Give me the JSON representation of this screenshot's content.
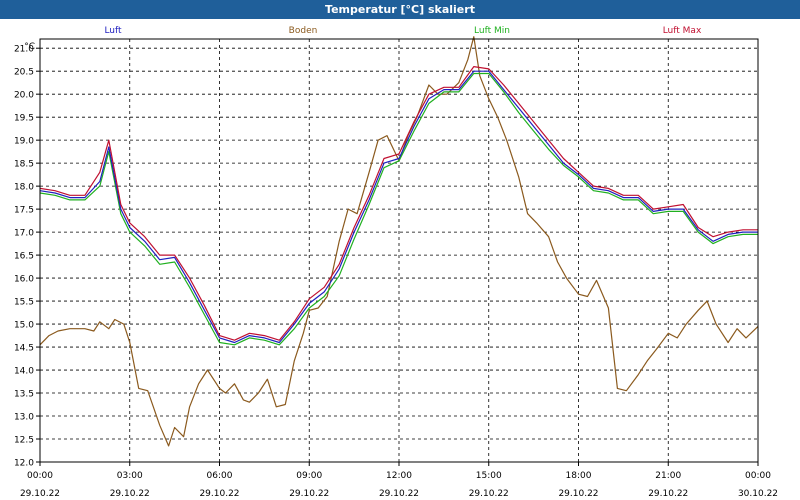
{
  "window": {
    "title": "Temperatur [°C] skaliert"
  },
  "chart_data": {
    "type": "line",
    "title": "Temperatur [°C] skaliert",
    "ylabel": "°C",
    "ylim": [
      12.0,
      21.2
    ],
    "xlim": [
      0,
      24
    ],
    "grid": true,
    "legend_placement": "top",
    "y_ticks": [
      "12.0",
      "12.5",
      "13.0",
      "13.5",
      "14.0",
      "14.5",
      "15.0",
      "15.5",
      "16.0",
      "16.5",
      "17.0",
      "17.5",
      "18.0",
      "18.5",
      "19.0",
      "19.5",
      "20.0",
      "20.5",
      "21.0"
    ],
    "x_ticks": [
      {
        "time": "00:00",
        "date": "29.10.22",
        "x": 0
      },
      {
        "time": "03:00",
        "date": "29.10.22",
        "x": 3
      },
      {
        "time": "06:00",
        "date": "29.10.22",
        "x": 6
      },
      {
        "time": "09:00",
        "date": "29.10.22",
        "x": 9
      },
      {
        "time": "12:00",
        "date": "29.10.22",
        "x": 12
      },
      {
        "time": "15:00",
        "date": "29.10.22",
        "x": 15
      },
      {
        "time": "18:00",
        "date": "29.10.22",
        "x": 18
      },
      {
        "time": "21:00",
        "date": "29.10.22",
        "x": 21
      },
      {
        "time": "00:00",
        "date": "30.10.22",
        "x": 24
      }
    ],
    "series": [
      {
        "name": "Luft",
        "color": "#2020c0",
        "x": [
          0,
          0.5,
          1,
          1.5,
          2,
          2.3,
          2.7,
          3,
          3.5,
          4,
          4.5,
          5,
          5.5,
          6,
          6.5,
          7,
          7.5,
          8,
          8.5,
          9,
          9.5,
          10,
          10.5,
          11,
          11.5,
          12,
          12.5,
          13,
          13.5,
          14,
          14.5,
          15,
          15.5,
          16,
          16.5,
          17,
          17.5,
          18,
          18.5,
          19,
          19.5,
          20,
          20.5,
          21,
          21.5,
          22,
          22.5,
          23,
          23.5,
          24
        ],
        "y": [
          17.9,
          17.85,
          17.75,
          17.75,
          18.1,
          18.85,
          17.5,
          17.1,
          16.8,
          16.4,
          16.45,
          15.9,
          15.3,
          14.7,
          14.6,
          14.75,
          14.7,
          14.6,
          15.0,
          15.45,
          15.7,
          16.2,
          17.0,
          17.7,
          18.5,
          18.6,
          19.3,
          19.9,
          20.1,
          20.1,
          20.5,
          20.5,
          20.1,
          19.7,
          19.3,
          18.9,
          18.5,
          18.25,
          17.95,
          17.9,
          17.75,
          17.75,
          17.45,
          17.5,
          17.5,
          17.05,
          16.8,
          16.95,
          17.0,
          17.0
        ]
      },
      {
        "name": "Boden",
        "color": "#8b5a1e",
        "x": [
          0,
          0.3,
          0.6,
          1,
          1.5,
          1.8,
          2,
          2.3,
          2.5,
          2.8,
          3,
          3.3,
          3.6,
          4,
          4.3,
          4.5,
          4.8,
          5,
          5.3,
          5.6,
          6,
          6.2,
          6.5,
          6.8,
          7,
          7.3,
          7.6,
          7.9,
          8.2,
          8.5,
          8.8,
          9,
          9.3,
          9.6,
          10,
          10.3,
          10.6,
          11,
          11.3,
          11.6,
          12,
          12.3,
          12.6,
          13,
          13.3,
          13.6,
          14,
          14.3,
          14.5,
          14.7,
          15,
          15.3,
          15.6,
          16,
          16.3,
          16.6,
          17,
          17.3,
          17.6,
          18,
          18.3,
          18.6,
          19,
          19.3,
          19.6,
          20,
          20.3,
          20.6,
          21,
          21.3,
          21.6,
          22,
          22.3,
          22.6,
          23,
          23.3,
          23.6,
          24
        ],
        "y": [
          14.55,
          14.75,
          14.85,
          14.9,
          14.9,
          14.85,
          15.05,
          14.9,
          15.1,
          15.0,
          14.6,
          13.6,
          13.55,
          12.8,
          12.35,
          12.75,
          12.55,
          13.2,
          13.7,
          14.0,
          13.6,
          13.5,
          13.7,
          13.35,
          13.3,
          13.5,
          13.8,
          13.2,
          13.25,
          14.2,
          14.8,
          15.3,
          15.35,
          15.6,
          16.8,
          17.5,
          17.4,
          18.3,
          19.0,
          19.1,
          18.55,
          19.1,
          19.5,
          20.2,
          20.0,
          20.0,
          20.25,
          20.75,
          21.25,
          20.4,
          19.9,
          19.5,
          19.0,
          18.2,
          17.4,
          17.2,
          16.9,
          16.35,
          16.0,
          15.65,
          15.6,
          15.95,
          15.35,
          13.6,
          13.55,
          13.9,
          14.2,
          14.45,
          14.8,
          14.7,
          15.0,
          15.3,
          15.5,
          15.0,
          14.6,
          14.9,
          14.7,
          14.95
        ]
      },
      {
        "name": "Luft Min",
        "color": "#20b020",
        "x": [
          0,
          0.5,
          1,
          1.5,
          2,
          2.3,
          2.7,
          3,
          3.5,
          4,
          4.5,
          5,
          5.5,
          6,
          6.5,
          7,
          7.5,
          8,
          8.5,
          9,
          9.5,
          10,
          10.5,
          11,
          11.5,
          12,
          12.5,
          13,
          13.5,
          14,
          14.5,
          15,
          15.5,
          16,
          16.5,
          17,
          17.5,
          18,
          18.5,
          19,
          19.5,
          20,
          20.5,
          21,
          21.5,
          22,
          22.5,
          23,
          23.5,
          24
        ],
        "y": [
          17.85,
          17.8,
          17.7,
          17.7,
          18.0,
          18.75,
          17.4,
          17.0,
          16.7,
          16.3,
          16.35,
          15.8,
          15.2,
          14.6,
          14.55,
          14.7,
          14.65,
          14.55,
          14.9,
          15.35,
          15.6,
          16.05,
          16.85,
          17.6,
          18.4,
          18.55,
          19.2,
          19.8,
          20.05,
          20.05,
          20.45,
          20.45,
          20.05,
          19.6,
          19.2,
          18.8,
          18.45,
          18.2,
          17.9,
          17.85,
          17.7,
          17.7,
          17.4,
          17.45,
          17.45,
          17.0,
          16.75,
          16.9,
          16.95,
          16.95
        ]
      },
      {
        "name": "Luft Max",
        "color": "#c01030",
        "x": [
          0,
          0.5,
          1,
          1.5,
          2,
          2.3,
          2.7,
          3,
          3.5,
          4,
          4.5,
          5,
          5.5,
          6,
          6.5,
          7,
          7.5,
          8,
          8.5,
          9,
          9.5,
          10,
          10.5,
          11,
          11.5,
          12,
          12.5,
          13,
          13.5,
          14,
          14.5,
          15,
          15.5,
          16,
          16.5,
          17,
          17.5,
          18,
          18.5,
          19,
          19.5,
          20,
          20.5,
          21,
          21.5,
          22,
          22.5,
          23,
          23.5,
          24
        ],
        "y": [
          17.95,
          17.9,
          17.8,
          17.8,
          18.3,
          19.0,
          17.6,
          17.2,
          16.9,
          16.5,
          16.5,
          16.0,
          15.4,
          14.75,
          14.65,
          14.8,
          14.75,
          14.65,
          15.05,
          15.55,
          15.8,
          16.3,
          17.1,
          17.8,
          18.6,
          18.7,
          19.4,
          20.0,
          20.15,
          20.15,
          20.6,
          20.55,
          20.2,
          19.8,
          19.4,
          19.0,
          18.6,
          18.3,
          18.0,
          17.95,
          17.8,
          17.8,
          17.5,
          17.55,
          17.6,
          17.1,
          16.9,
          17.0,
          17.05,
          17.05
        ]
      }
    ]
  }
}
